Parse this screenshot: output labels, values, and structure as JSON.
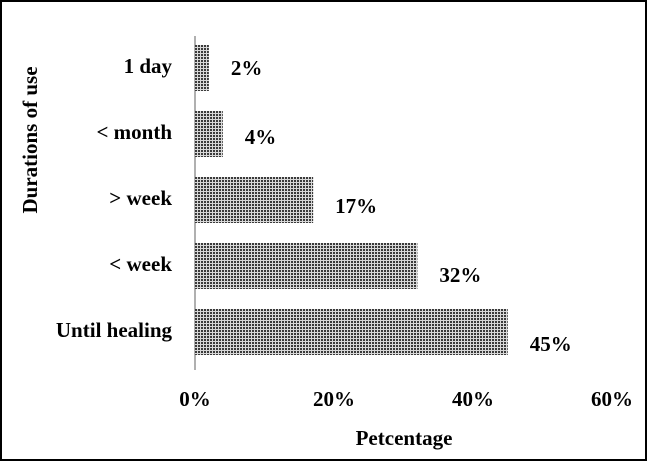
{
  "chart_data": {
    "type": "bar",
    "orientation": "horizontal",
    "x_label": "Petcentage",
    "y_label": "Durations of use",
    "categories": [
      "1 day",
      "< month",
      "> week",
      "< week",
      "Until healing"
    ],
    "values": [
      2,
      4,
      17,
      32,
      45
    ],
    "value_labels": [
      "2%",
      "4%",
      "17%",
      "32%",
      "45%"
    ],
    "color": "#3a3a3a",
    "xlim": [
      0,
      60
    ],
    "xticks": [
      {
        "value": 0,
        "label": "0%"
      },
      {
        "value": 20,
        "label": "20%"
      },
      {
        "value": 40,
        "label": "40%"
      },
      {
        "value": 60,
        "label": "60%"
      }
    ]
  }
}
